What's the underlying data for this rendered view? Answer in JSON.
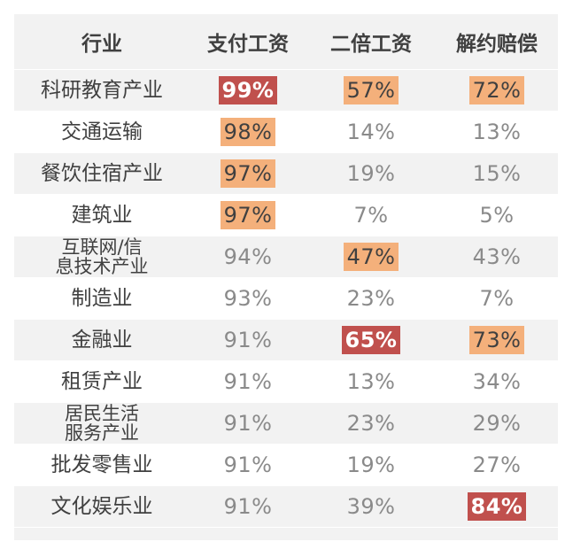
{
  "headers": [
    "行业",
    "支付工资",
    "二倍工资",
    "解约赔偿"
  ],
  "rows": [
    {
      "industry": "科研教育产业",
      "pay": "99%",
      "pay_style": "red",
      "double": "57%",
      "double_style": "orange",
      "comp": "72%",
      "comp_style": "orange"
    },
    {
      "industry": "交通运输",
      "pay": "98%",
      "pay_style": "orange",
      "double": "14%",
      "double_style": "plain",
      "comp": "13%",
      "comp_style": "plain"
    },
    {
      "industry": "餐饮住宿产业",
      "pay": "97%",
      "pay_style": "orange",
      "double": "19%",
      "double_style": "plain",
      "comp": "15%",
      "comp_style": "plain"
    },
    {
      "industry": "建筑业",
      "pay": "97%",
      "pay_style": "orange",
      "double": "7%",
      "double_style": "plain",
      "comp": "5%",
      "comp_style": "plain"
    },
    {
      "industry_line1": "互联网/信",
      "industry_line2": "息技术产业",
      "pay": "94%",
      "pay_style": "plain",
      "double": "47%",
      "double_style": "orange",
      "comp": "43%",
      "comp_style": "plain"
    },
    {
      "industry": "制造业",
      "pay": "93%",
      "pay_style": "plain",
      "double": "23%",
      "double_style": "plain",
      "comp": "7%",
      "comp_style": "plain"
    },
    {
      "industry": "金融业",
      "pay": "91%",
      "pay_style": "plain",
      "double": "65%",
      "double_style": "red",
      "comp": "73%",
      "comp_style": "orange"
    },
    {
      "industry": "租赁产业",
      "pay": "91%",
      "pay_style": "plain",
      "double": "13%",
      "double_style": "plain",
      "comp": "34%",
      "comp_style": "plain"
    },
    {
      "industry_line1": "居民生活",
      "industry_line2": "服务产业",
      "pay": "91%",
      "pay_style": "plain",
      "double": "23%",
      "double_style": "plain",
      "comp": "29%",
      "comp_style": "plain"
    },
    {
      "industry": "批发零售业",
      "pay": "91%",
      "pay_style": "plain",
      "double": "19%",
      "double_style": "plain",
      "comp": "27%",
      "comp_style": "plain"
    },
    {
      "industry": "文化娱乐业",
      "pay": "91%",
      "pay_style": "plain",
      "double": "39%",
      "double_style": "plain",
      "comp": "84%",
      "comp_style": "red"
    }
  ],
  "colors": {
    "highlight_orange": "#f4b07b",
    "highlight_red": "#c0504d",
    "stripe": "#f2f2f2"
  }
}
